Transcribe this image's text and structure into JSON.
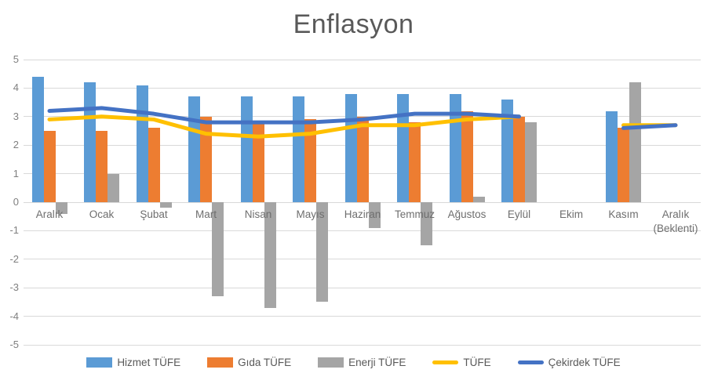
{
  "title": "Enflasyon",
  "chart_data": {
    "type": "bar",
    "subtype": "combo-bar-line",
    "title": "Enflasyon",
    "xlabel": "",
    "ylabel": "",
    "ylim": [
      -5,
      5
    ],
    "yticks": [
      5,
      4,
      3,
      2,
      1,
      0,
      -1,
      -2,
      -3,
      -4,
      -5
    ],
    "grid": true,
    "legend_position": "bottom",
    "categories": [
      "Aralık",
      "Ocak",
      "Şubat",
      "Mart",
      "Nisan",
      "Mayıs",
      "Haziran",
      "Temmuz",
      "Ağustos",
      "Eylül",
      "Ekim",
      "Kasım",
      "Aralık (Beklenti)"
    ],
    "bar_series": [
      {
        "name": "Hizmet TÜFE",
        "color": "#5B9BD5",
        "values": [
          4.4,
          4.2,
          4.1,
          3.7,
          3.7,
          3.7,
          3.8,
          3.8,
          3.8,
          3.6,
          null,
          3.2,
          null
        ]
      },
      {
        "name": "Gıda TÜFE",
        "color": "#ED7D31",
        "values": [
          2.5,
          2.5,
          2.6,
          3.0,
          2.8,
          2.9,
          3.0,
          2.8,
          3.2,
          3.0,
          null,
          2.6,
          null
        ]
      },
      {
        "name": "Enerji TÜFE",
        "color": "#A5A5A5",
        "values": [
          -0.4,
          1.0,
          -0.2,
          -3.3,
          -3.7,
          -3.5,
          -0.9,
          -1.5,
          0.2,
          2.8,
          null,
          4.2,
          null
        ]
      }
    ],
    "line_series": [
      {
        "name": "TÜFE",
        "color": "#FFC000",
        "values": [
          2.9,
          3.0,
          2.9,
          2.4,
          2.3,
          2.4,
          2.7,
          2.7,
          2.9,
          3.0,
          null,
          2.7,
          2.7
        ]
      },
      {
        "name": "Çekirdek TÜFE",
        "color": "#4472C4",
        "values": [
          3.2,
          3.3,
          3.1,
          2.8,
          2.8,
          2.8,
          2.9,
          3.1,
          3.1,
          3.0,
          null,
          2.6,
          2.7
        ]
      }
    ]
  },
  "colors": {
    "gridline": "#D9D9D9",
    "axis_text": "#7F7F7F",
    "title_text": "#595959"
  }
}
